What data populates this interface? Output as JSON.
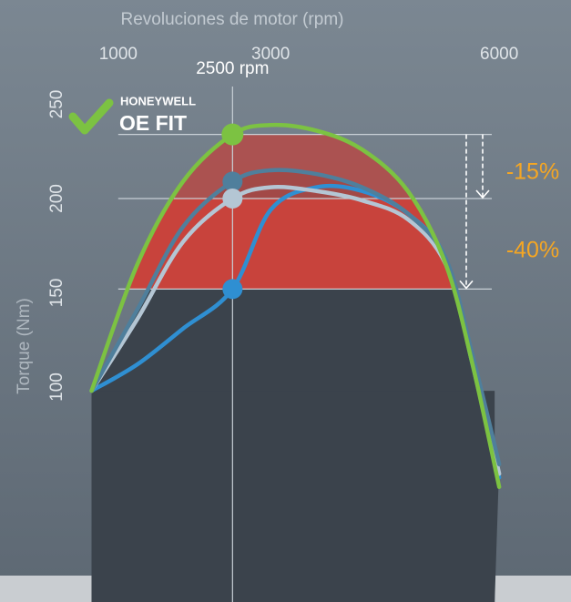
{
  "chart_data": {
    "type": "line",
    "xlabel": "Revoluciones de motor (rpm)",
    "ylabel": "Torque (Nm)",
    "x": [
      650,
      1250,
      1850,
      2500,
      3000,
      3600,
      4200,
      4800,
      5300,
      5650,
      6000
    ],
    "series": [
      {
        "color": "#7cc242",
        "values": [
          98,
          165,
          209,
          234,
          239,
          236,
          226,
          204,
          165,
          112,
          47
        ]
      },
      {
        "color": "#4f7f9c",
        "values": [
          98,
          141,
          185,
          209,
          215,
          213,
          206,
          192,
          168,
          117,
          59
        ]
      },
      {
        "color": "#b4c6d4",
        "values": [
          98,
          136,
          177,
          200,
          206,
          204,
          199,
          189,
          165,
          115,
          54
        ]
      },
      {
        "color": "#2f8fd2",
        "values": [
          98,
          112,
          131,
          152,
          194,
          206,
          204,
          192,
          168,
          112,
          52
        ]
      }
    ],
    "xlim": [
      500,
      6500
    ],
    "ylim": [
      0,
      300
    ],
    "xticks": [
      1000,
      3000,
      6000
    ],
    "yticks": [
      100,
      150,
      200,
      250
    ],
    "highlight_x": {
      "value": 2500,
      "label": "2500 rpm"
    },
    "badge": {
      "brand": "HONEYWELL",
      "label": "OE FIT"
    },
    "annotations": [
      "-15%",
      "-40%"
    ]
  }
}
